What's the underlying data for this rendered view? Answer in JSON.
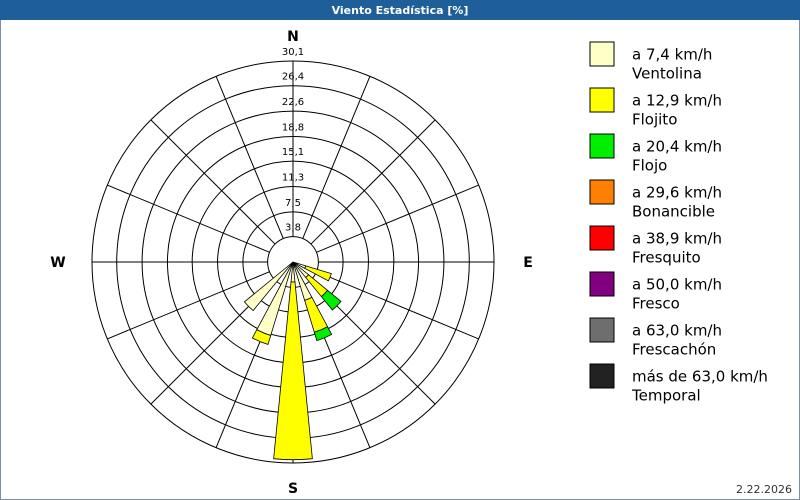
{
  "chart_data": {
    "type": "windrose",
    "title": "Viento Estadística [%]",
    "footer": "2.22.2026",
    "categories": [
      "N",
      null,
      null,
      null,
      "E",
      null,
      null,
      null,
      "S",
      null,
      null,
      null,
      "W",
      null,
      null,
      null
    ],
    "ylim": [
      0,
      30.1
    ],
    "yticks": [
      {
        "value": 3.8,
        "label": "3,8"
      },
      {
        "value": 7.5,
        "label": "7,5"
      },
      {
        "value": 11.3,
        "label": "11,3"
      },
      {
        "value": 15.1,
        "label": "15,1"
      },
      {
        "value": 18.8,
        "label": "18,8"
      },
      {
        "value": 22.6,
        "label": "22,6"
      },
      {
        "value": 26.4,
        "label": "26,4"
      },
      {
        "value": 30.1,
        "label": "30,1"
      }
    ],
    "series": [
      {
        "name": "a 7,4 km/h",
        "subtitle": "Ventolina",
        "color": "#ffffc8",
        "values": [
          0,
          0,
          0,
          0,
          0,
          2,
          3,
          6,
          3,
          11.5,
          9.4,
          0,
          0,
          0,
          0,
          0
        ]
      },
      {
        "name": "a 12,9 km/h",
        "subtitle": "Flojito",
        "color": "#ffff00",
        "values": [
          0,
          0,
          0,
          0,
          0,
          4,
          3.7,
          5,
          26.6,
          1.4,
          0,
          0,
          0,
          0,
          0,
          0
        ]
      },
      {
        "name": "a 20,4 km/h",
        "subtitle": "Flojo",
        "color": "#00ee00",
        "values": [
          0,
          0,
          0,
          0,
          0,
          0,
          2.6,
          1.3,
          0,
          0,
          0,
          0,
          0,
          0,
          0,
          0
        ]
      },
      {
        "name": "a 29,6 km/h",
        "subtitle": "Bonancible",
        "color": "#ff8000",
        "values": [
          0,
          0,
          0,
          0,
          0,
          0,
          0,
          0,
          0,
          0,
          0,
          0,
          0,
          0,
          0,
          0
        ]
      },
      {
        "name": "a 38,9 km/h",
        "subtitle": "Fresquito",
        "color": "#ff0000",
        "values": [
          0,
          0,
          0,
          0,
          0,
          0,
          0,
          0,
          0,
          0,
          0,
          0,
          0,
          0,
          0,
          0
        ]
      },
      {
        "name": "a 50,0 km/h",
        "subtitle": "Fresco",
        "color": "#800080",
        "values": [
          0,
          0,
          0,
          0,
          0,
          0,
          0,
          0,
          0,
          0,
          0,
          0,
          0,
          0,
          0,
          0
        ]
      },
      {
        "name": "a 63,0 km/h",
        "subtitle": "Frescachón",
        "color": "#6e6e6e",
        "values": [
          0,
          0,
          0,
          0,
          0,
          0,
          0,
          0,
          0,
          0,
          0,
          0,
          0,
          0,
          0,
          0
        ]
      },
      {
        "name": "más de 63,0 km/h",
        "subtitle": "Temporal",
        "color": "#222222",
        "values": [
          0,
          0,
          0,
          0,
          0,
          0,
          0,
          0,
          0,
          0,
          0,
          0,
          0,
          0,
          0,
          0
        ]
      }
    ]
  }
}
